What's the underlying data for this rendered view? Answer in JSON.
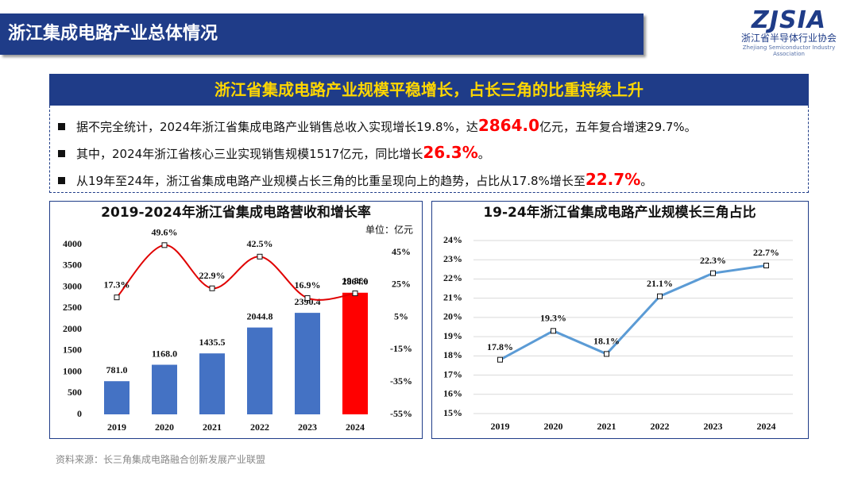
{
  "header": {
    "title": "浙江集成电路产业总体情况",
    "logo": "ZJSIA",
    "org_name": "浙江省半导体行业协会",
    "org_name_en": "Zhejiang Semiconductor Industry Association"
  },
  "banner": "浙江省集成电路产业规模平稳增长，占长三角的比重持续上升",
  "bullets": [
    [
      {
        "text": "据不完全统计，2024年浙江省集成电路产业销售总收入实现增长19.8%，达"
      },
      {
        "text": "2864.0",
        "highlight": true
      },
      {
        "text": "亿元，五年复合增速29.7%。"
      }
    ],
    [
      {
        "text": "其中，2024年浙江省核心三业实现销售规模1517亿元，同比增长"
      },
      {
        "text": "26.3%",
        "highlight": true
      },
      {
        "text": "。"
      }
    ],
    [
      {
        "text": "从19年至24年，浙江省集成电路产业规模占长三角的比重呈现向上的趋势，占比从17.8%增长至"
      },
      {
        "text": "22.7%",
        "highlight": true
      },
      {
        "text": "。"
      }
    ]
  ],
  "source": "资料来源：长三角集成电路融合创新发展产业联盟",
  "chart_data": [
    {
      "type": "bar",
      "title": "2019-2024年浙江省集成电路营收和增长率",
      "unit_label": "单位：亿元",
      "categories": [
        "2019",
        "2020",
        "2021",
        "2022",
        "2023",
        "2024"
      ],
      "series": [
        {
          "type": "bar",
          "colors": [
            "#4472c4",
            "#4472c4",
            "#4472c4",
            "#4472c4",
            "#4472c4",
            "#ff0000"
          ],
          "values": [
            781.0,
            1168.0,
            1435.5,
            2044.8,
            2390.4,
            2864.0
          ],
          "value_labels": [
            "781.0",
            "1168.0",
            "1435.5",
            "2044.8",
            "2390.4",
            "2864.0"
          ]
        },
        {
          "type": "line",
          "axis": "y2",
          "color": "#e00000",
          "values": [
            17.3,
            49.6,
            22.9,
            42.5,
            16.9,
            19.8
          ],
          "value_labels": [
            "17.3%",
            "49.6%",
            "22.9%",
            "42.5%",
            "16.9%",
            "19.8%"
          ]
        }
      ],
      "ylim": [
        0,
        4000
      ],
      "yticks": [
        0,
        500,
        1000,
        1500,
        2000,
        2500,
        3000,
        3500,
        4000
      ],
      "y2lim": [
        -55,
        50
      ],
      "y2ticks": [
        {
          "value": -55,
          "label": "-55%"
        },
        {
          "value": -35,
          "label": "-35%"
        },
        {
          "value": -15,
          "label": "-15%"
        },
        {
          "value": 5,
          "label": "5%"
        },
        {
          "value": 25,
          "label": "25%"
        },
        {
          "value": 45,
          "label": "45%"
        }
      ],
      "grid": false
    },
    {
      "type": "line",
      "title": "19-24年浙江省集成电路产业规模长三角占比",
      "categories": [
        "2019",
        "2020",
        "2021",
        "2022",
        "2023",
        "2024"
      ],
      "series": [
        {
          "color": "#5b9bd5",
          "values": [
            17.8,
            19.3,
            18.1,
            21.1,
            22.3,
            22.7
          ],
          "value_labels": [
            "17.8%",
            "19.3%",
            "18.1%",
            "21.1%",
            "22.3%",
            "22.7%"
          ]
        }
      ],
      "ylim": [
        15,
        24
      ],
      "yticks": [
        {
          "value": 15,
          "label": "15%"
        },
        {
          "value": 16,
          "label": "16%"
        },
        {
          "value": 17,
          "label": "17%"
        },
        {
          "value": 18,
          "label": "18%"
        },
        {
          "value": 19,
          "label": "19%"
        },
        {
          "value": 20,
          "label": "20%"
        },
        {
          "value": 21,
          "label": "21%"
        },
        {
          "value": 22,
          "label": "22%"
        },
        {
          "value": 23,
          "label": "23%"
        },
        {
          "value": 24,
          "label": "24%"
        }
      ],
      "grid": true
    }
  ]
}
